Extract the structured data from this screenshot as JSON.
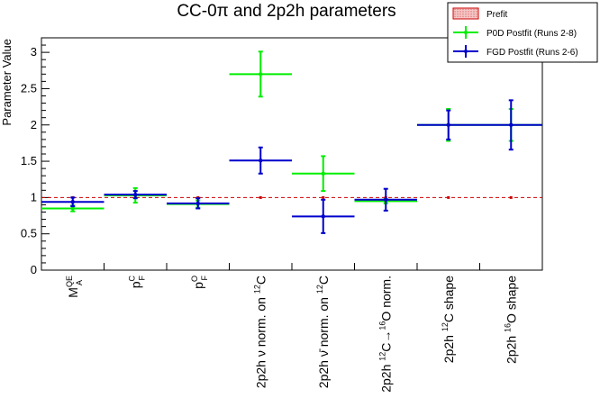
{
  "chart_data": {
    "type": "scatter",
    "title": "CC-0π and 2p2h parameters",
    "ylabel": "Parameter Value",
    "ylim": [
      0,
      3.2
    ],
    "y_ticks": [
      "0",
      "0.5",
      "1",
      "1.5",
      "2",
      "2.5",
      "3"
    ],
    "categories": [
      {
        "main": "M",
        "sup": "QE",
        "sub": "A"
      },
      {
        "main": "p",
        "sup": "C",
        "sub": "F"
      },
      {
        "main": "p",
        "sup": "O",
        "sub": "F"
      },
      {
        "main": "2p2h ν norm. on ",
        "sup": "12",
        "tail": "C"
      },
      {
        "main": "2p2h ν̄ norm. on ",
        "sup": "12",
        "tail": "C"
      },
      {
        "main": "2p2h ",
        "sup": "12",
        "tail": "C→",
        "sup2": "16",
        "tail2": "O norm."
      },
      {
        "main": "2p2h ",
        "sup": "12",
        "tail": "C shape"
      },
      {
        "main": "2p2h ",
        "sup": "16",
        "tail": "O shape"
      }
    ],
    "reference_line": 1,
    "grid": false,
    "legend_position": "top-right",
    "series": [
      {
        "name": "Prefit",
        "color": "#cc0000",
        "values": [
          1,
          1,
          1,
          1,
          1,
          1,
          1,
          1
        ],
        "errors": [
          0,
          0,
          0,
          0,
          0,
          0,
          0,
          0
        ]
      },
      {
        "name": "P0D Postfit (Runs 2-8)",
        "color": "#00ee00",
        "values": [
          0.85,
          1.03,
          0.91,
          2.7,
          1.33,
          0.95,
          2.0,
          2.0
        ],
        "errors": [
          0.04,
          0.1,
          0.05,
          0.31,
          0.24,
          0.03,
          0.22,
          0.22
        ]
      },
      {
        "name": "FGD Postfit (Runs 2-6)",
        "color": "#0000cc",
        "values": [
          0.94,
          1.04,
          0.92,
          1.51,
          0.74,
          0.97,
          2.0,
          2.0
        ],
        "errors": [
          0.06,
          0.05,
          0.07,
          0.18,
          0.23,
          0.15,
          0.2,
          0.34
        ]
      }
    ]
  }
}
